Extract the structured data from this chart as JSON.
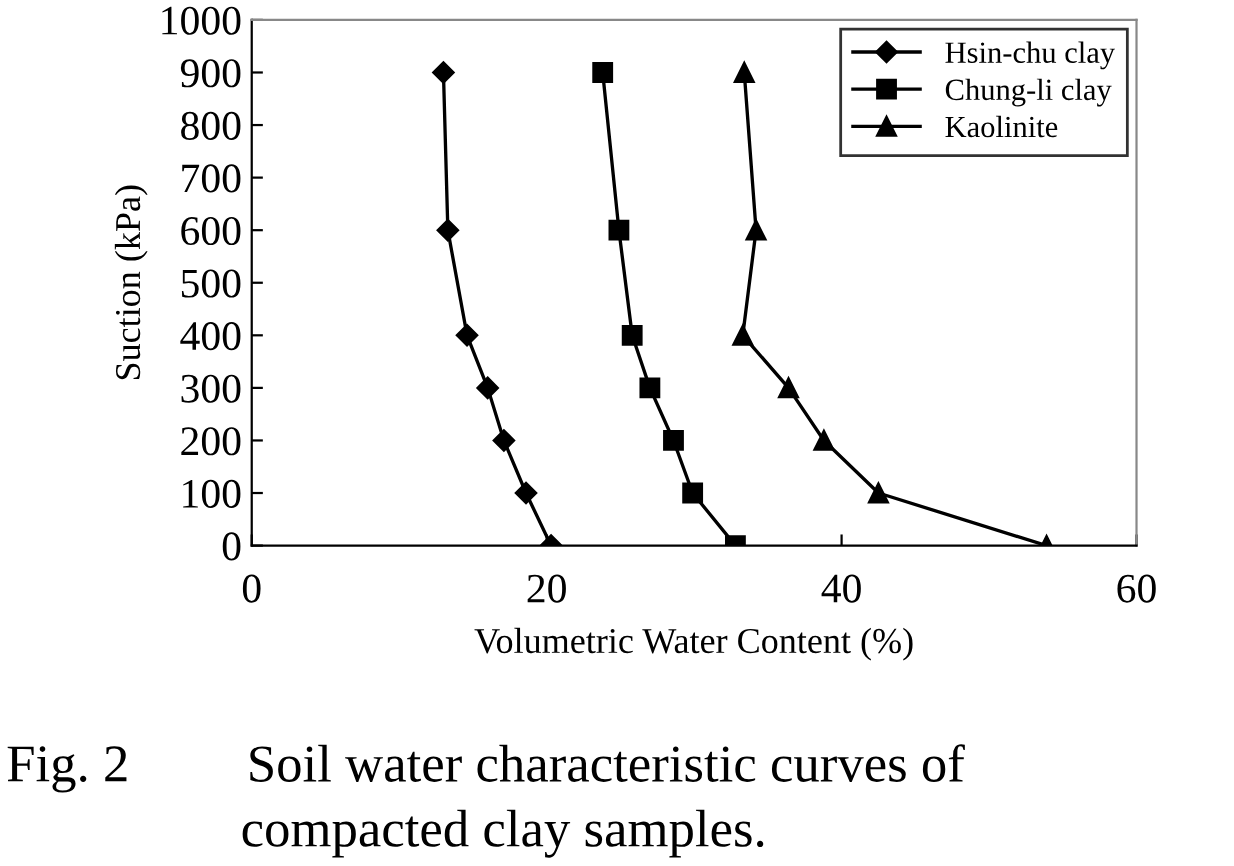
{
  "chart_data": {
    "type": "line",
    "xlabel": "Volumetric Water Content (%)",
    "ylabel": "Suction (kPa)",
    "xlim": [
      0,
      60
    ],
    "xticks": [
      0,
      20,
      40,
      60
    ],
    "ylim": [
      0,
      1000
    ],
    "yticks": [
      0,
      100,
      200,
      300,
      400,
      500,
      600,
      700,
      800,
      900,
      1000
    ],
    "grid": false,
    "legend": "top right",
    "line_style": "solid",
    "series": [
      {
        "name": "Hsin-chu clay",
        "color": "#000000",
        "marker": "diamond",
        "x": [
          13.0,
          13.3,
          14.6,
          16.0,
          17.1,
          18.6,
          20.3
        ],
        "values": [
          900,
          600,
          400,
          300,
          200,
          100,
          0
        ]
      },
      {
        "name": "Chung-li clay",
        "color": "#000000",
        "marker": "square",
        "x": [
          23.8,
          24.9,
          25.8,
          27.0,
          28.6,
          29.9,
          32.8
        ],
        "values": [
          900,
          600,
          400,
          300,
          200,
          100,
          0
        ]
      },
      {
        "name": "Kaolinite",
        "color": "#000000",
        "marker": "triangle",
        "x": [
          33.4,
          34.2,
          33.3,
          36.4,
          38.8,
          42.5,
          53.9
        ],
        "values": [
          900,
          600,
          400,
          300,
          200,
          100,
          0
        ]
      }
    ],
    "annotations": [
      "Fig. 2",
      "Soil water characteristic curves of",
      "compacted clay samples."
    ]
  }
}
